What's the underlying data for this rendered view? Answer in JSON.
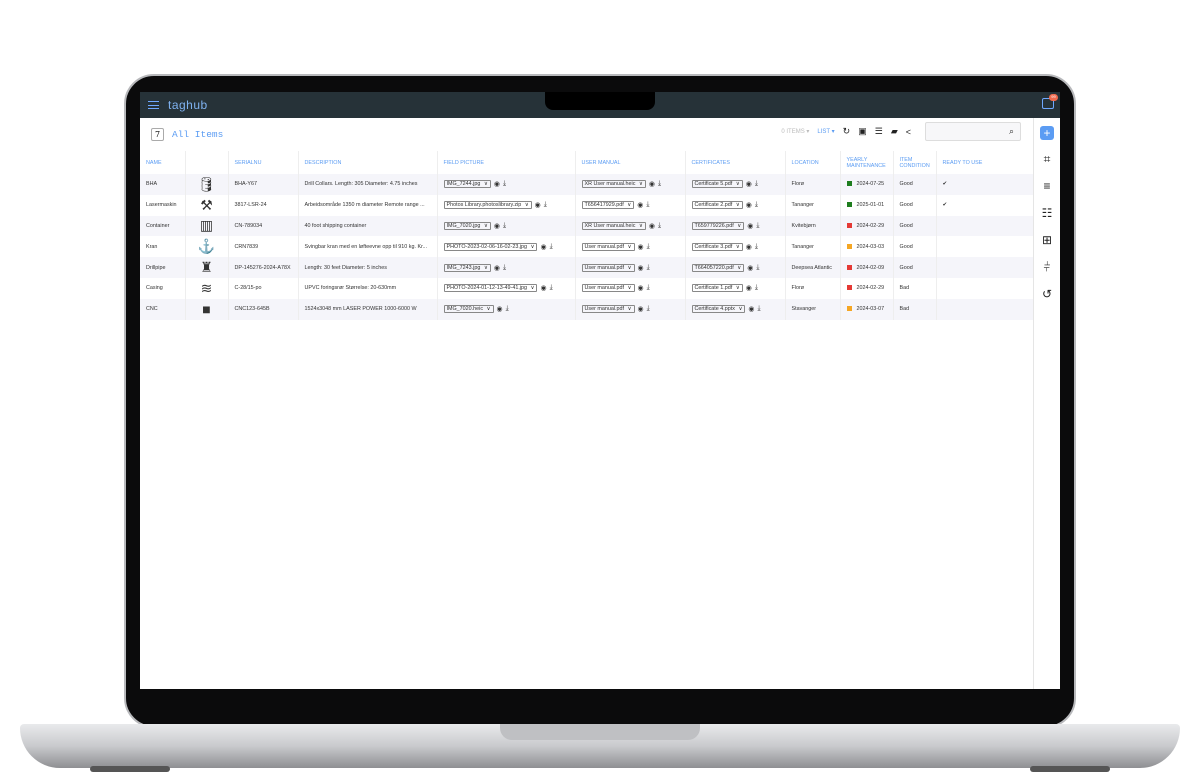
{
  "app": {
    "logo": "taghub",
    "notification_count": "99"
  },
  "header": {
    "count": "7",
    "title": "All Items",
    "items_label": "0 ITEMS",
    "view_label": "LIST",
    "search_placeholder": ""
  },
  "columns": [
    "NAME",
    "",
    "SERIALNU",
    "DESCRIPTION",
    "FIELD PICTURE",
    "USER MANUAL",
    "CERTIFICATES",
    "LOCATION",
    "YEARLY MAINTENANCE",
    "ITEM CONDITION",
    "READY TO USE"
  ],
  "status_colors": {
    "green": "#1e7d1e",
    "red": "#e53935",
    "orange": "#f5a623"
  },
  "rows": [
    {
      "name": "BHA",
      "icon": "gas-cylinder-icon",
      "glyph": "🛢",
      "serial": "BHA-Y67",
      "description": "Drill Collars. Length: 305 Diameter: 4.75 inches",
      "field_picture": "IMG_7244.jpg",
      "user_manual": "XR User manual.heic",
      "certificate": "Certificate 5.pdf",
      "location": "Florø",
      "status": "green",
      "maintenance": "2024-07-25",
      "condition": "Good",
      "ready": "✔"
    },
    {
      "name": "Lasermaskin",
      "icon": "tools-icon",
      "glyph": "⚒",
      "serial": "3817-LSR-24",
      "description": "Arbeidsområde 1350 m diameter Remote range ...",
      "field_picture": "Photos Library.photoslibrary.zip",
      "user_manual": "T656417929.pdf",
      "certificate": "Certificate 2.pdf",
      "location": "Tananger",
      "status": "green",
      "maintenance": "2025-01-01",
      "condition": "Good",
      "ready": "✔"
    },
    {
      "name": "Container",
      "icon": "container-icon",
      "glyph": "▥",
      "serial": "CN-789034",
      "description": "40 foot shipping container",
      "field_picture": "IMG_7020.jpg",
      "user_manual": "XR User manual.heic",
      "certificate": "T659779226.pdf",
      "location": "Kvitebjørn",
      "status": "red",
      "maintenance": "2024-02-29",
      "condition": "Good",
      "ready": ""
    },
    {
      "name": "Kran",
      "icon": "crane-hook-icon",
      "glyph": "⚓",
      "serial": "CRN7839",
      "description": "Svingbar kran med en løfteevne opp til 910 kg. Kr...",
      "field_picture": "PHOTO-2023-02-06-16-02-23.jpg",
      "user_manual": "User manual.pdf",
      "certificate": "Certificate 3.pdf",
      "location": "Tananger",
      "status": "orange",
      "maintenance": "2024-03-03",
      "condition": "Good",
      "ready": ""
    },
    {
      "name": "Drillpipe",
      "icon": "oil-rig-icon",
      "glyph": "♜",
      "serial": "DP-145276-2024-A78X",
      "description": "Length: 30 feet Diameter: 5 inches",
      "field_picture": "IMG_7243.jpg",
      "user_manual": "User manual.pdf",
      "certificate": "T664057220.pdf",
      "location": "Deepsea Atlantic",
      "status": "red",
      "maintenance": "2024-02-09",
      "condition": "Good",
      "ready": ""
    },
    {
      "name": "Casing",
      "icon": "pipes-icon",
      "glyph": "≋",
      "serial": "C-28/15-po",
      "description": "UPVC foringsrør Størrelse: 20-630mm",
      "field_picture": "PHOTO-2024-01-12-13-49-41.jpg",
      "user_manual": "User manual.pdf",
      "certificate": "Certificate 1.pdf",
      "location": "Florø",
      "status": "red",
      "maintenance": "2024-02-29",
      "condition": "Bad",
      "ready": ""
    },
    {
      "name": "CNC",
      "icon": "box-icon",
      "glyph": "■",
      "serial": "CNC123-645B",
      "description": "1524x3048 mm LASER POWER 1000-6000 W",
      "field_picture": "IMG_7020.heic",
      "user_manual": "User manual.pdf",
      "certificate": "Certificate 4.pptx",
      "location": "Stavanger",
      "status": "orange",
      "maintenance": "2024-03-07",
      "condition": "Bad",
      "ready": ""
    }
  ]
}
